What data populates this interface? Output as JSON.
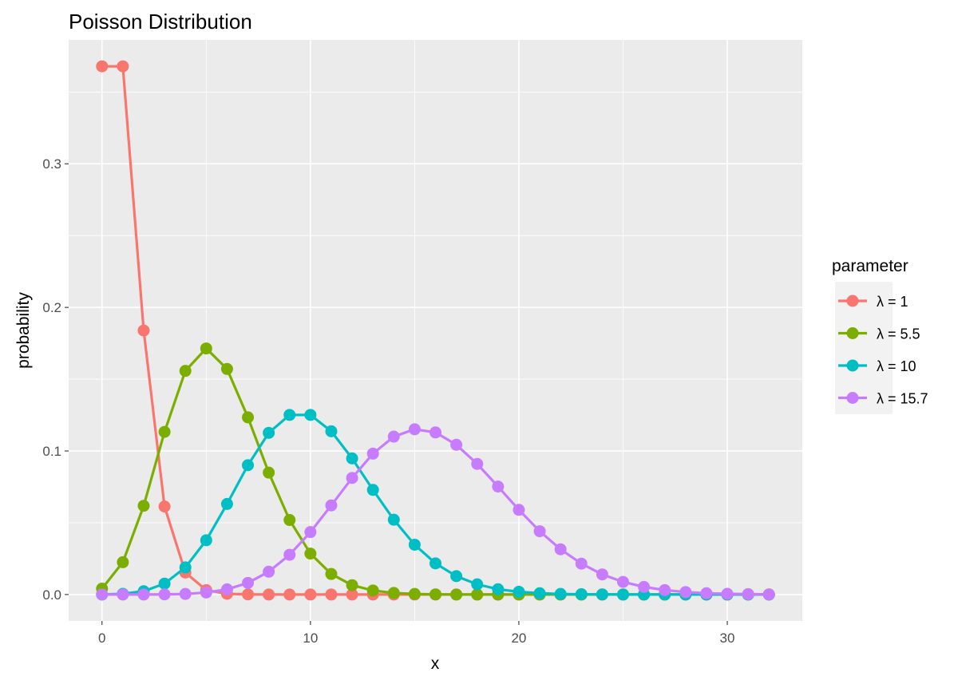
{
  "chart_data": {
    "type": "line",
    "title": "Poisson Distribution",
    "xlabel": "x",
    "ylabel": "probability",
    "xlim": [
      -1.6,
      33.6
    ],
    "ylim": [
      -0.0184,
      0.3863
    ],
    "x_ticks": [
      0,
      10,
      20,
      30
    ],
    "x_tick_labels": [
      "0",
      "10",
      "20",
      "30"
    ],
    "y_ticks": [
      0.0,
      0.1,
      0.2,
      0.3
    ],
    "y_tick_labels": [
      "0.0",
      "0.1",
      "0.2",
      "0.3"
    ],
    "grid": true,
    "legend": {
      "title": "parameter",
      "position": "right",
      "entries": [
        "λ = 1",
        "λ = 5.5",
        "λ = 10",
        "λ = 15.7"
      ]
    },
    "x": [
      0,
      1,
      2,
      3,
      4,
      5,
      6,
      7,
      8,
      9,
      10,
      11,
      12,
      13,
      14,
      15,
      16,
      17,
      18,
      19,
      20,
      21,
      22,
      23,
      24,
      25,
      26,
      27,
      28,
      29,
      30,
      31,
      32
    ],
    "series": [
      {
        "name": "λ = 1",
        "color": "#F8766D",
        "values": [
          0.3679,
          0.3679,
          0.1839,
          0.0613,
          0.0153,
          0.0031,
          0.0005,
          0.0001,
          0,
          0,
          0,
          0,
          0,
          0,
          0,
          0,
          0,
          0,
          0,
          0,
          0,
          0,
          0,
          0,
          0,
          0,
          0,
          0,
          0,
          0,
          0,
          0,
          0
        ]
      },
      {
        "name": "λ = 5.5",
        "color": "#7CAE00",
        "values": [
          0.0041,
          0.0225,
          0.0618,
          0.1133,
          0.1558,
          0.1714,
          0.1571,
          0.1234,
          0.0849,
          0.0519,
          0.0285,
          0.0143,
          0.0065,
          0.0028,
          0.0011,
          0.0004,
          0.0001,
          0,
          0,
          0,
          0,
          0,
          0,
          0,
          0,
          0,
          0,
          0,
          0,
          0,
          0,
          0,
          0
        ]
      },
      {
        "name": "λ = 10",
        "color": "#00BFC4",
        "values": [
          0,
          0.0005,
          0.0023,
          0.0076,
          0.0189,
          0.0378,
          0.0631,
          0.0901,
          0.1126,
          0.1251,
          0.1251,
          0.1137,
          0.0948,
          0.0729,
          0.0521,
          0.0347,
          0.0217,
          0.0128,
          0.0071,
          0.0037,
          0.0019,
          0.0009,
          0.0004,
          0.0002,
          0.0001,
          0,
          0,
          0,
          0,
          0,
          0,
          0,
          0
        ]
      },
      {
        "name": "λ = 15.7",
        "color": "#C77CFF",
        "values": [
          0,
          0,
          0,
          0.0001,
          0.0004,
          0.0014,
          0.0036,
          0.0081,
          0.0159,
          0.0277,
          0.0435,
          0.0621,
          0.0812,
          0.0981,
          0.11,
          0.1151,
          0.1129,
          0.1043,
          0.091,
          0.0752,
          0.059,
          0.0441,
          0.0315,
          0.0215,
          0.014,
          0.0088,
          0.0053,
          0.0031,
          0.0017,
          0.0009,
          0.0005,
          0.0003,
          0.0001
        ]
      }
    ]
  }
}
